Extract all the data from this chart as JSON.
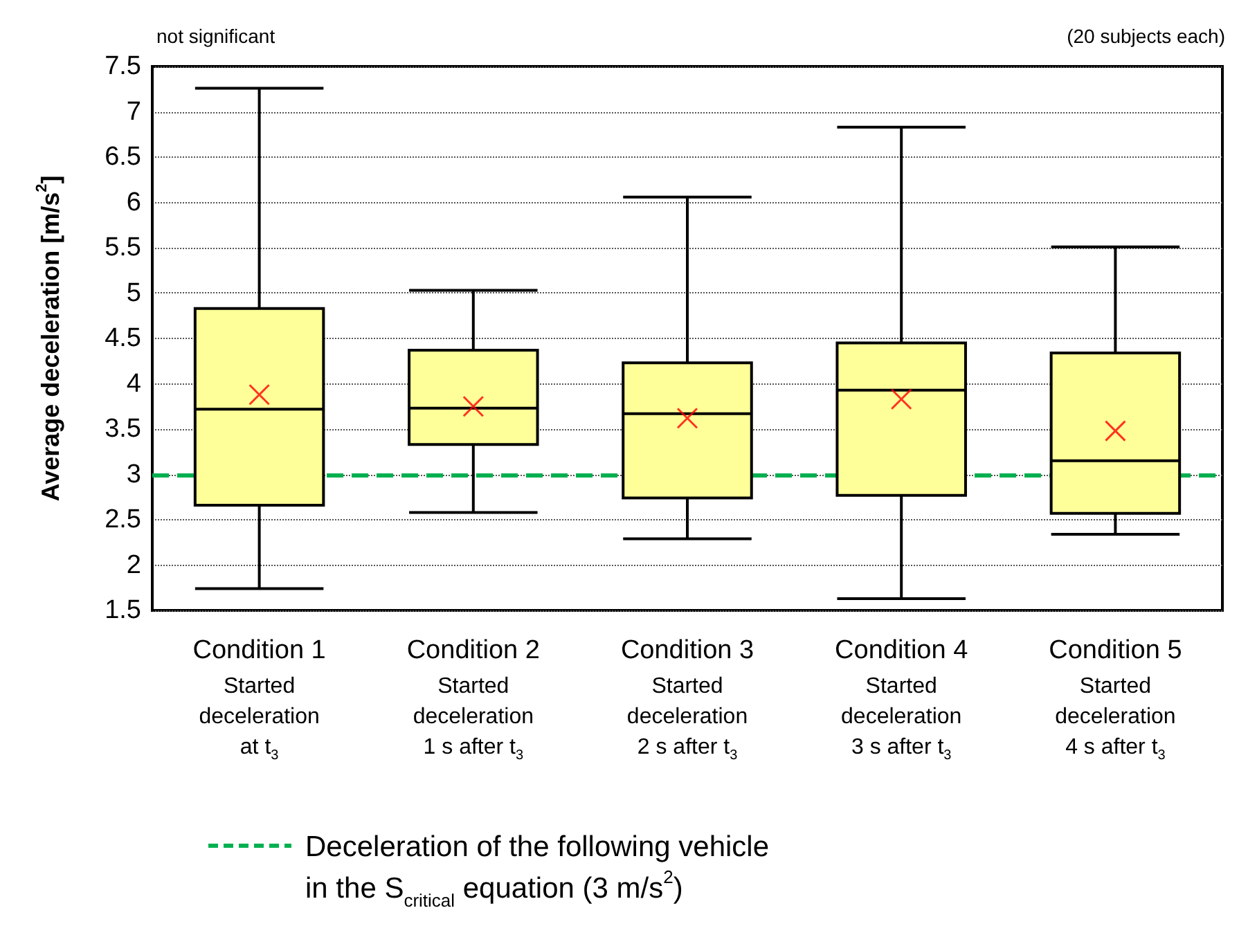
{
  "chart_data": {
    "type": "box",
    "ylabel": "Average deceleration [m/s$^{2}$]",
    "annotations": [
      "not significant",
      "(20 subjects each)"
    ],
    "categories": [
      "Condition 1\nStarted\ndeceleration\nat t$_{3}$",
      "Condition 2\nStarted\ndeceleration\n1 s after t$_{3}$",
      "Condition 3\nStarted\ndeceleration\n2 s after t$_{3}$",
      "Condition 4\nStarted\ndeceleration\n3 s after t$_{3}$",
      "Condition 5\nStarted\ndeceleration\n4 s after t$_{3}$"
    ],
    "series": [
      {
        "color": "#ffff99",
        "boxes": [
          {
            "low": 1.74,
            "q1": 2.66,
            "median": 3.72,
            "q3": 4.83,
            "high": 7.26,
            "mean": 3.88
          },
          {
            "low": 2.58,
            "q1": 3.33,
            "median": 3.73,
            "q3": 4.37,
            "high": 5.03,
            "mean": 3.75
          },
          {
            "low": 2.29,
            "q1": 2.74,
            "median": 3.67,
            "q3": 4.23,
            "high": 6.06,
            "mean": 3.62
          },
          {
            "low": 1.63,
            "q1": 2.77,
            "median": 3.93,
            "q3": 4.45,
            "high": 6.83,
            "mean": 3.83
          },
          {
            "low": 2.34,
            "q1": 2.57,
            "median": 3.15,
            "q3": 4.34,
            "high": 5.51,
            "mean": 3.48
          }
        ]
      }
    ],
    "ylim": [
      1.5,
      7.5
    ],
    "yticks": [
      1.5,
      2,
      2.5,
      3,
      3.5,
      4,
      4.5,
      5,
      5.5,
      6,
      6.5,
      7,
      7.5
    ],
    "ref_lines": [
      {
        "axis": "y",
        "value": 3,
        "label": "Deceleration of the following vehicle\nin the S$_{critical}$ equation (3 m/s$^{2}$)",
        "color": "#00b050",
        "line_style": "dashed"
      }
    ],
    "grid": "y",
    "marker": "cross",
    "legend": "bottom"
  }
}
